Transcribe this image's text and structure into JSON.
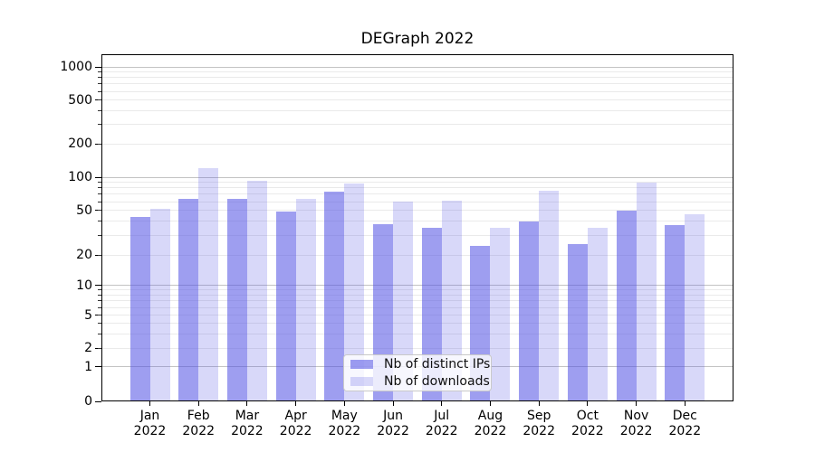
{
  "chart_data": {
    "type": "bar",
    "title": "DEGraph 2022",
    "x_axis": {
      "months": [
        "Jan",
        "Feb",
        "Mar",
        "Apr",
        "May",
        "Jun",
        "Jul",
        "Aug",
        "Sep",
        "Oct",
        "Nov",
        "Dec"
      ],
      "year": "2022"
    },
    "series": [
      {
        "name": "Nb of distinct IPs",
        "fill": "rgba(79,79,228,0.55)",
        "color_on_white": "#9f9ff0",
        "values": [
          44,
          64,
          64,
          49,
          74,
          38,
          35,
          24,
          40,
          25,
          50,
          37
        ]
      },
      {
        "name": "Nb of downloads",
        "fill": "rgba(79,79,228,0.22)",
        "color_on_white": "#d8d8f9",
        "values": [
          52,
          120,
          92,
          64,
          87,
          60,
          61,
          35,
          76,
          35,
          89,
          46
        ]
      }
    ],
    "y_axis": {
      "scale": "symlog-like (0 baseline, logarithmic above 1)",
      "range": [
        0,
        1000
      ],
      "ticks": [
        {
          "value": 0,
          "label": "0",
          "pos": 0.0
        },
        {
          "value": 1,
          "label": "1",
          "pos": 0.099
        },
        {
          "value": 2,
          "label": "2",
          "pos": 0.1536
        },
        {
          "value": 5,
          "label": "5",
          "pos": 0.2474
        },
        {
          "value": 10,
          "label": "10",
          "pos": 0.3341
        },
        {
          "value": 20,
          "label": "20",
          "pos": 0.4211
        },
        {
          "value": 50,
          "label": "50",
          "pos": 0.5503
        },
        {
          "value": 100,
          "label": "100",
          "pos": 0.6458
        },
        {
          "value": 200,
          "label": "200",
          "pos": 0.7414
        },
        {
          "value": 500,
          "label": "500",
          "pos": 0.868
        },
        {
          "value": 1000,
          "label": "1000",
          "pos": 0.9635
        }
      ],
      "major_gridlines": [
        1,
        10,
        100,
        1000
      ],
      "minor_gridlines": [
        2,
        3,
        4,
        5,
        6,
        7,
        8,
        9,
        20,
        30,
        40,
        50,
        60,
        70,
        80,
        90,
        200,
        300,
        400,
        500,
        600,
        700,
        800,
        900
      ]
    },
    "legend": {
      "position": "lower center",
      "entries": [
        "Nb of distinct IPs",
        "Nb of downloads"
      ]
    },
    "grid": true,
    "colors": {
      "grid_major": "#c3c3c3",
      "grid_minor": "#eaeaea",
      "spine": "#000000",
      "text": "#000000"
    }
  }
}
